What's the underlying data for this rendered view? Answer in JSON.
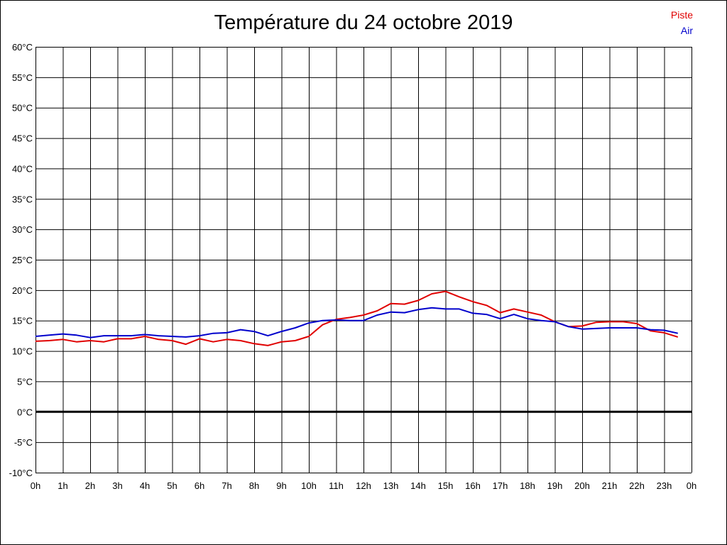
{
  "chart_data": {
    "type": "line",
    "title": "Température du 24 octobre 2019",
    "x_tick_labels": [
      "0h",
      "1h",
      "2h",
      "3h",
      "4h",
      "5h",
      "6h",
      "7h",
      "8h",
      "9h",
      "10h",
      "11h",
      "12h",
      "13h",
      "14h",
      "15h",
      "16h",
      "17h",
      "18h",
      "19h",
      "20h",
      "21h",
      "22h",
      "23h",
      "0h"
    ],
    "y_tick_labels": [
      "60°C",
      "55°C",
      "50°C",
      "45°C",
      "40°C",
      "35°C",
      "30°C",
      "25°C",
      "20°C",
      "15°C",
      "10°C",
      "5°C",
      "0°C",
      "-5°C",
      "-10°C"
    ],
    "xlim": [
      0,
      24
    ],
    "ylim": [
      -10,
      60
    ],
    "grid": true,
    "legend_position": "top-right",
    "x": [
      0,
      0.5,
      1,
      1.5,
      2,
      2.5,
      3,
      3.5,
      4,
      4.5,
      5,
      5.5,
      6,
      6.5,
      7,
      7.5,
      8,
      8.5,
      9,
      9.5,
      10,
      10.5,
      11,
      11.5,
      12,
      12.5,
      13,
      13.5,
      14,
      14.5,
      15,
      15.5,
      16,
      16.5,
      17,
      17.5,
      18,
      18.5,
      19,
      19.5,
      20,
      20.5,
      21,
      21.5,
      22,
      22.5,
      23,
      23.5
    ],
    "series": [
      {
        "name": "Piste",
        "color": "#e00000",
        "values": [
          11.6,
          11.7,
          11.9,
          11.5,
          11.7,
          11.5,
          12.0,
          12.0,
          12.4,
          11.9,
          11.7,
          11.1,
          12.0,
          11.5,
          11.9,
          11.7,
          11.2,
          10.9,
          11.5,
          11.7,
          12.4,
          14.3,
          15.2,
          15.5,
          15.9,
          16.6,
          17.8,
          17.7,
          18.3,
          19.4,
          19.8,
          18.9,
          18.1,
          17.5,
          16.3,
          16.9,
          16.4,
          15.9,
          14.8,
          14.0,
          14.1,
          14.7,
          14.8,
          14.8,
          14.5,
          13.3,
          13.0,
          12.3
        ]
      },
      {
        "name": "Air",
        "color": "#0000cc",
        "values": [
          12.4,
          12.6,
          12.8,
          12.6,
          12.2,
          12.5,
          12.5,
          12.5,
          12.7,
          12.5,
          12.4,
          12.3,
          12.5,
          12.9,
          13.0,
          13.5,
          13.2,
          12.5,
          13.2,
          13.8,
          14.6,
          15.0,
          15.1,
          15.0,
          15.0,
          15.9,
          16.4,
          16.3,
          16.8,
          17.1,
          16.9,
          16.9,
          16.2,
          16.0,
          15.3,
          16.0,
          15.3,
          15.0,
          14.8,
          14.0,
          13.6,
          13.7,
          13.8,
          13.8,
          13.8,
          13.5,
          13.4,
          12.9
        ]
      }
    ],
    "baseline_value": 0
  }
}
